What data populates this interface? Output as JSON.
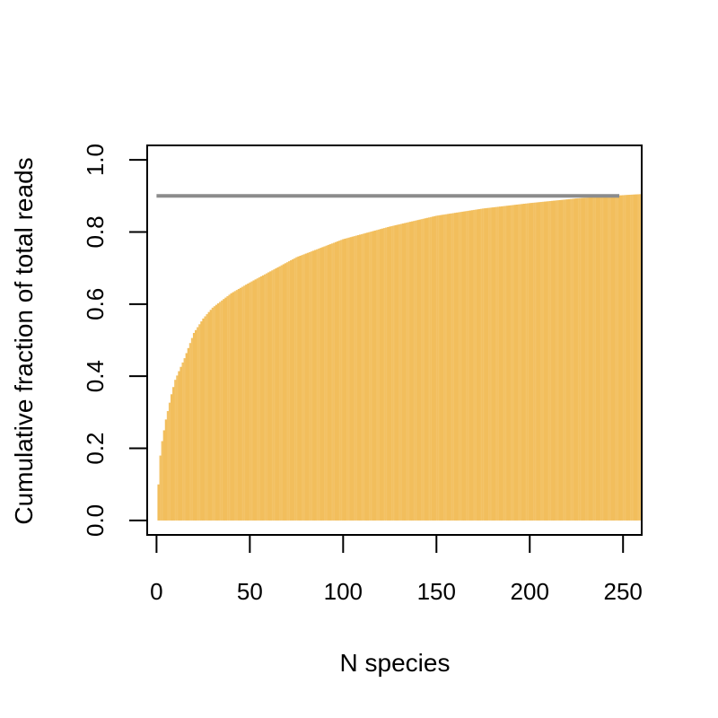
{
  "chart_data": {
    "type": "bar",
    "title": "",
    "xlabel": "N species",
    "ylabel": "Cumulative fraction of total reads",
    "xlim": [
      -5,
      260
    ],
    "ylim": [
      -0.04,
      1.04
    ],
    "xticks": [
      0,
      50,
      100,
      150,
      200,
      250
    ],
    "yticks": [
      0.0,
      0.2,
      0.4,
      0.6,
      0.8,
      1.0
    ],
    "xtick_labels": [
      "0",
      "50",
      "100",
      "150",
      "200",
      "250"
    ],
    "ytick_labels": [
      "0.0",
      "0.2",
      "0.4",
      "0.6",
      "0.8",
      "1.0"
    ],
    "bar_color": "#F2BE5C",
    "reference_line_color": "#8C8C8C",
    "grid": false,
    "reference_line": {
      "y": 0.9,
      "x_from": 0,
      "x_to": 248
    },
    "series": [
      {
        "x_range": [
          0,
          263
        ],
        "curve_samples": [
          {
            "x": 0,
            "y": 0.0
          },
          {
            "x": 1,
            "y": 0.1
          },
          {
            "x": 2,
            "y": 0.18
          },
          {
            "x": 3,
            "y": 0.22
          },
          {
            "x": 5,
            "y": 0.28
          },
          {
            "x": 8,
            "y": 0.35
          },
          {
            "x": 10,
            "y": 0.39
          },
          {
            "x": 15,
            "y": 0.45
          },
          {
            "x": 20,
            "y": 0.52
          },
          {
            "x": 25,
            "y": 0.56
          },
          {
            "x": 30,
            "y": 0.59
          },
          {
            "x": 40,
            "y": 0.63
          },
          {
            "x": 50,
            "y": 0.66
          },
          {
            "x": 75,
            "y": 0.73
          },
          {
            "x": 100,
            "y": 0.78
          },
          {
            "x": 125,
            "y": 0.815
          },
          {
            "x": 150,
            "y": 0.845
          },
          {
            "x": 175,
            "y": 0.865
          },
          {
            "x": 200,
            "y": 0.88
          },
          {
            "x": 225,
            "y": 0.893
          },
          {
            "x": 250,
            "y": 0.902
          },
          {
            "x": 263,
            "y": 0.906
          }
        ]
      }
    ]
  }
}
